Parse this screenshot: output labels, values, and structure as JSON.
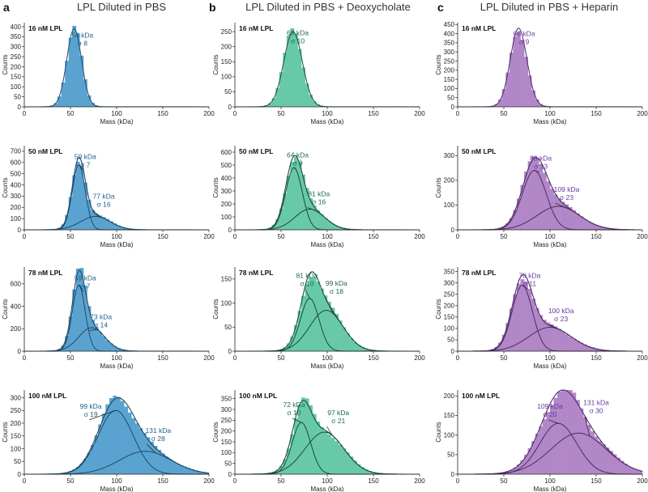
{
  "chart_data": [
    {
      "type": "bar",
      "panel": "a",
      "title": "LPL Diluted in PBS",
      "color": "#5aa3d0",
      "line_color": "#1f4a68",
      "ann_color": "#1f5f8a",
      "xlabel": "Mass (kDa)",
      "ylabel": "Counts",
      "xlim": [
        0,
        200
      ],
      "xticks": [
        "0",
        "50",
        "100",
        "150",
        "200"
      ],
      "rows": [
        {
          "condition": "16 nM LPL",
          "ylim": [
            0,
            420
          ],
          "yticks": [
            0,
            50,
            100,
            150,
            200,
            250,
            300,
            350,
            400
          ],
          "peaks": [
            {
              "mu": 54,
              "sigma": 8,
              "amp": 390,
              "label": "54 kDa",
              "sigma_label": "σ 8"
            }
          ]
        },
        {
          "condition": "50 nM LPL",
          "ylim": [
            0,
            750
          ],
          "yticks": [
            0,
            100,
            200,
            300,
            400,
            500,
            600,
            700
          ],
          "peaks": [
            {
              "mu": 59,
              "sigma": 7,
              "amp": 580,
              "label": "59 kDa",
              "sigma_label": "σ 7"
            },
            {
              "mu": 77,
              "sigma": 16,
              "amp": 120,
              "label": "77 kDa",
              "sigma_label": "σ 16"
            }
          ]
        },
        {
          "condition": "78 nM LPL",
          "ylim": [
            0,
            750
          ],
          "yticks": [
            0,
            200,
            400,
            600
          ],
          "peaks": [
            {
              "mu": 59,
              "sigma": 7,
              "amp": 590,
              "label": "59 kDa",
              "sigma_label": "σ 7"
            },
            {
              "mu": 73,
              "sigma": 14,
              "amp": 210,
              "label": "73 kDa",
              "sigma_label": "σ 14"
            }
          ]
        },
        {
          "condition": "100 nM LPL",
          "ylim": [
            0,
            330
          ],
          "yticks": [
            0,
            50,
            100,
            150,
            200,
            250,
            300
          ],
          "peaks": [
            {
              "mu": 99,
              "sigma": 19,
              "amp": 250,
              "label": "99 kDa",
              "sigma_label": "σ 19"
            },
            {
              "mu": 131,
              "sigma": 28,
              "amp": 90,
              "label": "131 kDa",
              "sigma_label": "σ 28"
            }
          ]
        }
      ]
    },
    {
      "type": "bar",
      "panel": "b",
      "title": "LPL Diluted in PBS + Deoxycholate",
      "color": "#67c9a8",
      "line_color": "#1d4a3b",
      "ann_color": "#1d6a50",
      "xlabel": "Mass (kDa)",
      "ylabel": "Counts",
      "xlim": [
        0,
        200
      ],
      "xticks": [
        "0",
        "50",
        "100",
        "150",
        "200"
      ],
      "rows": [
        {
          "condition": "16 nM LPL",
          "ylim": [
            0,
            280
          ],
          "yticks": [
            0,
            50,
            100,
            150,
            200,
            250
          ],
          "peaks": [
            {
              "mu": 63,
              "sigma": 10,
              "amp": 250,
              "label": "63 kDa",
              "sigma_label": "σ 10"
            }
          ]
        },
        {
          "condition": "50 nM LPL",
          "ylim": [
            0,
            650
          ],
          "yticks": [
            0,
            100,
            200,
            300,
            400,
            500,
            600
          ],
          "peaks": [
            {
              "mu": 64,
              "sigma": 9,
              "amp": 480,
              "label": "64 kDa",
              "sigma_label": "σ 9"
            },
            {
              "mu": 81,
              "sigma": 16,
              "amp": 160,
              "label": "81 kDa",
              "sigma_label": "σ 16"
            }
          ]
        },
        {
          "condition": "78 nM LPL",
          "ylim": [
            0,
            175
          ],
          "yticks": [
            0,
            50,
            100,
            150
          ],
          "peaks": [
            {
              "mu": 81,
              "sigma": 10,
              "amp": 110,
              "label": "81 kDa",
              "sigma_label": "σ 10"
            },
            {
              "mu": 99,
              "sigma": 18,
              "amp": 85,
              "label": "99 kDa",
              "sigma_label": "σ 18"
            }
          ]
        },
        {
          "condition": "100 nM LPL",
          "ylim": [
            0,
            390
          ],
          "yticks": [
            0,
            50,
            100,
            150,
            200,
            250,
            300,
            350
          ],
          "peaks": [
            {
              "mu": 72,
              "sigma": 10,
              "amp": 240,
              "label": "72 kDa",
              "sigma_label": "σ 10"
            },
            {
              "mu": 97,
              "sigma": 21,
              "amp": 195,
              "label": "97 kDa",
              "sigma_label": "σ 21"
            }
          ]
        }
      ]
    },
    {
      "type": "bar",
      "panel": "c",
      "title": "LPL Diluted in PBS + Heparin",
      "color": "#b187c8",
      "line_color": "#4e2a66",
      "ann_color": "#6a36a0",
      "xlabel": "Mass (kDa)",
      "ylabel": "Counts",
      "xlim": [
        0,
        200
      ],
      "xticks": [
        "0",
        "50",
        "100",
        "150",
        "200"
      ],
      "rows": [
        {
          "condition": "16 nM LPL",
          "ylim": [
            0,
            460
          ],
          "yticks": [
            0,
            50,
            100,
            150,
            200,
            250,
            300,
            350,
            400,
            450
          ],
          "peaks": [
            {
              "mu": 66,
              "sigma": 9,
              "amp": 430,
              "label": "66 kDa",
              "sigma_label": "σ 9"
            }
          ]
        },
        {
          "condition": "50 nM LPL",
          "ylim": [
            0,
            340
          ],
          "yticks": [
            0,
            100,
            200,
            300
          ],
          "peaks": [
            {
              "mu": 83,
              "sigma": 13,
              "amp": 240,
              "label": "83 kDa",
              "sigma_label": "σ 13"
            },
            {
              "mu": 109,
              "sigma": 23,
              "amp": 95,
              "label": "109 kDa",
              "sigma_label": "σ 23"
            }
          ]
        },
        {
          "condition": "78 nM LPL",
          "ylim": [
            0,
            370
          ],
          "yticks": [
            0,
            50,
            100,
            150,
            200,
            250,
            300,
            350
          ],
          "peaks": [
            {
              "mu": 70,
              "sigma": 11,
              "amp": 290,
              "label": "70 kDa",
              "sigma_label": "σ 11"
            },
            {
              "mu": 100,
              "sigma": 23,
              "amp": 105,
              "label": "100 kDa",
              "sigma_label": "σ 23"
            }
          ]
        },
        {
          "condition": "100 nM LPL",
          "ylim": [
            0,
            215
          ],
          "yticks": [
            0,
            50,
            100,
            150,
            200
          ],
          "peaks": [
            {
              "mu": 109,
              "sigma": 20,
              "amp": 130,
              "label": "109 kDa",
              "sigma_label": "σ 20"
            },
            {
              "mu": 131,
              "sigma": 30,
              "amp": 105,
              "label": "131 kDa",
              "sigma_label": "σ 30"
            }
          ]
        }
      ]
    }
  ]
}
